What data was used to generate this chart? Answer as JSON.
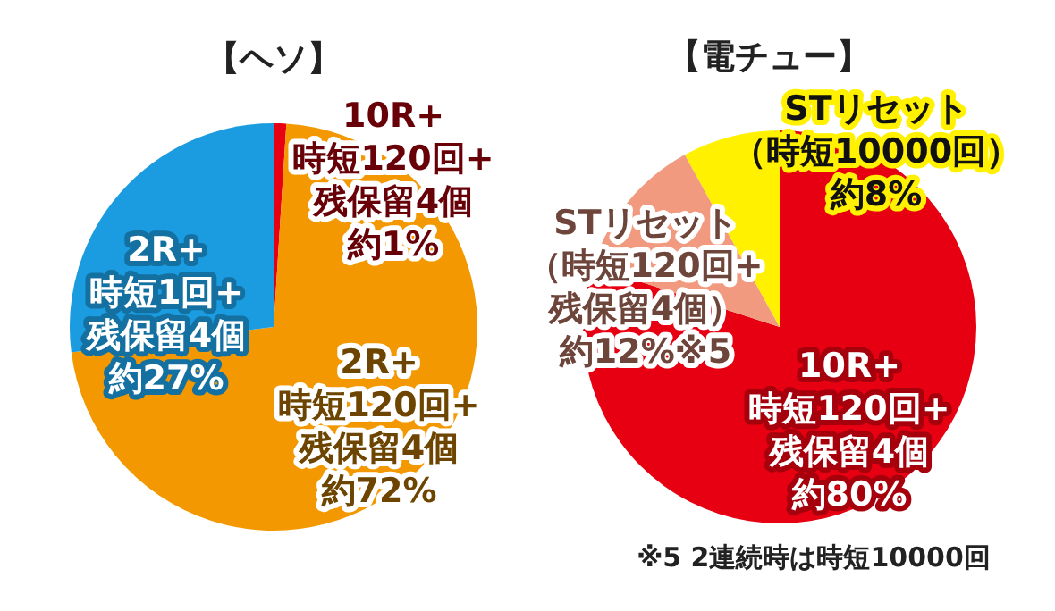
{
  "chart_data": [
    {
      "type": "pie",
      "title": "【ヘソ】",
      "categories": [
        "10R+\n時短120回+\n残保留4個",
        "2R+\n時短120回+\n残保留4個",
        "2R+\n時短1回+\n残保留4個"
      ],
      "values": [
        1,
        72,
        27
      ],
      "colors": [
        "#e60012",
        "#f39800",
        "#1b9ce0"
      ],
      "value_labels": [
        "約1%",
        "約72%",
        "約27%"
      ]
    },
    {
      "type": "pie",
      "title": "【電チュー】",
      "categories": [
        "10R+\n時短120回+\n残保留4個",
        "STリセット（時短120回+\n残保留4個）",
        "STリセット（時短10000回）"
      ],
      "values": [
        80,
        12,
        8
      ],
      "colors": [
        "#e60012",
        "#f29a80",
        "#fff100"
      ],
      "value_labels": [
        "約80%",
        "約12%※5",
        "約8%"
      ],
      "annotations": [
        "※5 2連続時は時短10000回"
      ]
    }
  ]
}
